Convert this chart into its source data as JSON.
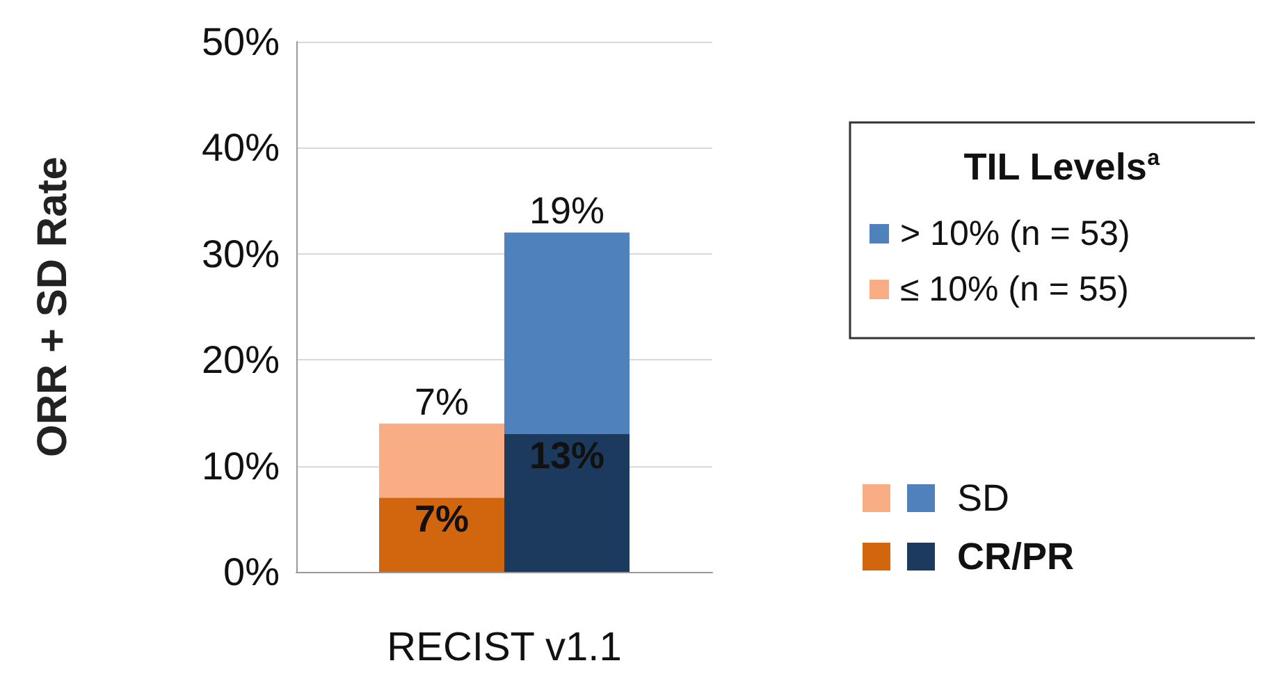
{
  "chart_data": {
    "type": "bar",
    "stacked": true,
    "xlabel": "RECIST v1.1",
    "ylabel": "ORR + SD Rate",
    "legend_title": "TIL Levels$^{a}$",
    "categories": [
      null,
      null
    ],
    "series": [
      {
        "name": "CR/PR",
        "colors": [
          "#d2660f",
          "#1c3a5e"
        ],
        "values": [
          7,
          13
        ],
        "value_labels": [
          "7%",
          "13%"
        ]
      },
      {
        "name": "SD",
        "colors": [
          "#f9ad84",
          "#4f81bd"
        ],
        "values": [
          7,
          19
        ],
        "value_labels": [
          "7%",
          "19%"
        ]
      }
    ],
    "annotations": [
      "> 10% (n = 53)",
      "≤ 10% (n = 55)"
    ],
    "ylim": [
      0,
      50
    ],
    "yticks": [
      {
        "value": 0,
        "label": "0%"
      },
      {
        "value": 10,
        "label": "10%"
      },
      {
        "value": 20,
        "label": "20%"
      },
      {
        "value": 30,
        "label": "30%"
      },
      {
        "value": 40,
        "label": "40%"
      },
      {
        "value": 50,
        "label": "50%"
      }
    ],
    "grid": "y",
    "legend": "right"
  }
}
